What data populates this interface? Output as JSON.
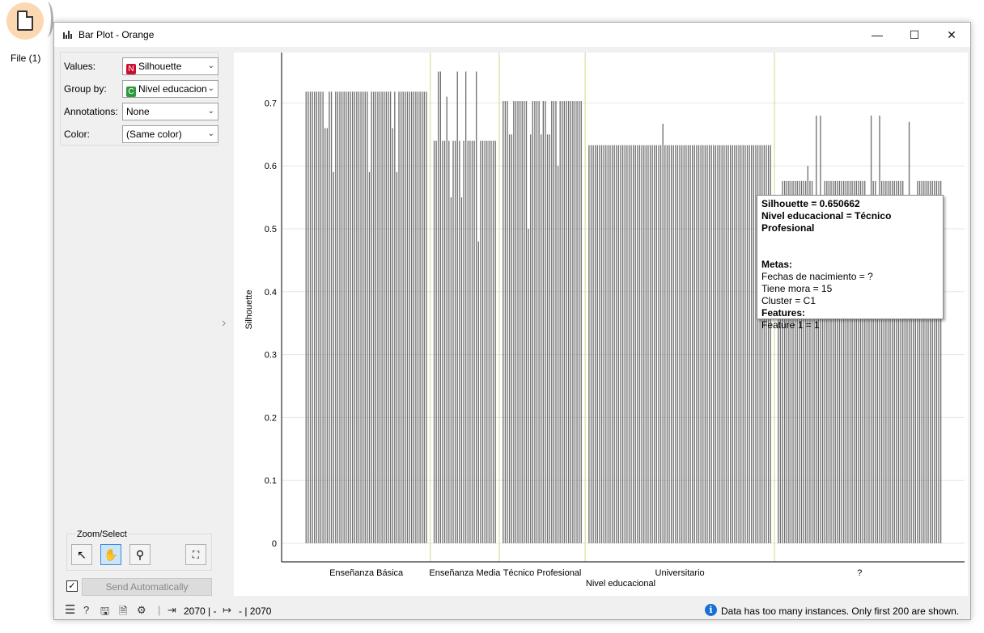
{
  "canvas": {
    "node_label": "File (1)"
  },
  "window": {
    "title": "Bar Plot - Orange",
    "minimize": "—",
    "maximize": "☐",
    "close": "✕"
  },
  "controls": {
    "values_label": "Values:",
    "values_value": "Silhouette",
    "values_badge": "N",
    "group_label": "Group by:",
    "group_value": "Nivel educacional",
    "group_badge": "C",
    "annotations_label": "Annotations:",
    "annotations_value": "None",
    "color_label": "Color:",
    "color_value": "(Same color)",
    "zoom_title": "Zoom/Select",
    "send_label": "Send Automatically"
  },
  "tooltip": {
    "line1": "Silhouette = 0.650662",
    "line2": "Nivel educacional = Técnico Profesional",
    "metas_header": "Metas:",
    "meta1": "Fechas de nacimiento = ?",
    "meta2": "Tiene mora = 15",
    "meta3": "Cluster = C1",
    "features_header": "Features:",
    "feature1": "Feature 1 = 1"
  },
  "status": {
    "input_count": "2070 | -",
    "output_count": "- | 2070",
    "message": "Data has too many instances. Only first 200 are shown."
  },
  "colors": {
    "bar": "#6e6e6e",
    "group_line": "#d6d68a",
    "badge_numeric": "#c8102e",
    "badge_categorical": "#2e9a3e"
  },
  "chart_data": {
    "type": "bar",
    "xlabel": "Nivel educacional",
    "ylabel": "Silhouette",
    "ylim": [
      0,
      0.75
    ],
    "yticks": [
      "0",
      "0.1",
      "0.2",
      "0.3",
      "0.4",
      "0.5",
      "0.6",
      "0.7"
    ],
    "groups": [
      {
        "name": "Enseñanza Básica",
        "values": [
          0.718,
          0.718,
          0.718,
          0.718,
          0.718,
          0.718,
          0.718,
          0.718,
          0.718,
          0.66,
          0.66,
          0.718,
          0.718,
          0.59,
          0.718,
          0.718,
          0.718,
          0.718,
          0.718,
          0.718,
          0.718,
          0.718,
          0.718,
          0.718,
          0.718,
          0.718,
          0.718,
          0.718,
          0.718,
          0.718,
          0.59,
          0.718,
          0.718,
          0.718,
          0.718,
          0.718,
          0.718,
          0.718,
          0.718,
          0.718,
          0.718,
          0.66,
          0.718,
          0.59,
          0.718,
          0.718,
          0.718,
          0.718,
          0.718,
          0.718,
          0.718,
          0.718,
          0.718,
          0.718,
          0.718,
          0.718,
          0.718,
          0.718
        ]
      },
      {
        "name": "Enseñanza Media",
        "values": [
          0.64,
          0.64,
          0.75,
          0.75,
          0.64,
          0.64,
          0.71,
          0.64,
          0.55,
          0.64,
          0.64,
          0.75,
          0.64,
          0.55,
          0.64,
          0.75,
          0.64,
          0.64,
          0.64,
          0.64,
          0.75,
          0.48,
          0.64,
          0.64,
          0.64,
          0.64,
          0.64,
          0.64,
          0.64,
          0.64
        ]
      },
      {
        "name": "Técnico Profesional",
        "values": [
          0.703,
          0.703,
          0.703,
          0.65,
          0.65,
          0.703,
          0.703,
          0.703,
          0.703,
          0.703,
          0.703,
          0.703,
          0.5,
          0.65,
          0.703,
          0.703,
          0.703,
          0.703,
          0.65,
          0.703,
          0.703,
          0.65,
          0.65,
          0.703,
          0.703,
          0.703,
          0.6,
          0.703,
          0.703,
          0.703,
          0.703,
          0.703,
          0.703,
          0.703,
          0.703,
          0.703,
          0.703,
          0.703
        ]
      },
      {
        "name": "Universitario",
        "values": [
          0.633,
          0.633,
          0.633,
          0.633,
          0.633,
          0.633,
          0.633,
          0.633,
          0.633,
          0.633,
          0.633,
          0.633,
          0.633,
          0.633,
          0.633,
          0.633,
          0.633,
          0.633,
          0.633,
          0.633,
          0.633,
          0.633,
          0.633,
          0.633,
          0.633,
          0.633,
          0.633,
          0.633,
          0.633,
          0.633,
          0.633,
          0.633,
          0.633,
          0.633,
          0.633,
          0.667,
          0.633,
          0.633,
          0.633,
          0.633,
          0.633,
          0.633,
          0.633,
          0.633,
          0.633,
          0.633,
          0.633,
          0.633,
          0.633,
          0.633,
          0.633,
          0.633,
          0.633,
          0.633,
          0.633,
          0.633,
          0.633,
          0.633,
          0.633,
          0.633,
          0.633,
          0.633,
          0.633,
          0.633,
          0.633,
          0.633,
          0.633,
          0.633,
          0.633,
          0.633,
          0.633,
          0.633,
          0.633,
          0.633,
          0.633,
          0.633,
          0.633,
          0.633,
          0.633,
          0.633,
          0.633,
          0.633,
          0.633,
          0.633,
          0.633,
          0.633,
          0.633
        ]
      },
      {
        "name": "?",
        "values": [
          0.52,
          0.52,
          0.576,
          0.576,
          0.576,
          0.576,
          0.576,
          0.576,
          0.576,
          0.576,
          0.576,
          0.576,
          0.576,
          0.576,
          0.6,
          0.576,
          0.576,
          0.52,
          0.68,
          0.51,
          0.68,
          0.52,
          0.576,
          0.576,
          0.576,
          0.576,
          0.576,
          0.576,
          0.576,
          0.576,
          0.576,
          0.576,
          0.576,
          0.576,
          0.576,
          0.576,
          0.576,
          0.576,
          0.576,
          0.576,
          0.576,
          0.576,
          0.46,
          0.46,
          0.68,
          0.576,
          0.576,
          0.52,
          0.68,
          0.576,
          0.576,
          0.576,
          0.576,
          0.576,
          0.576,
          0.576,
          0.576,
          0.576,
          0.576,
          0.576,
          0.46,
          0.46,
          0.67,
          0.52,
          0.46,
          0.46,
          0.576,
          0.576,
          0.576,
          0.576,
          0.576,
          0.576,
          0.576,
          0.576,
          0.576,
          0.576,
          0.576,
          0.576
        ]
      }
    ]
  }
}
